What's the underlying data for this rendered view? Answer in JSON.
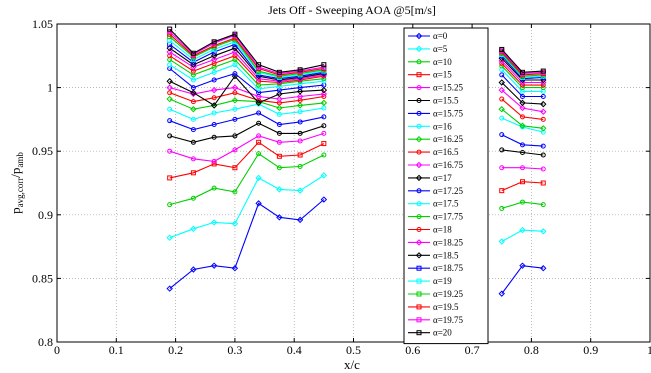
{
  "chart_data": {
    "type": "line",
    "title": "Jets Off - Sweeping AOA @5[m/s]",
    "xlabel": "x/c",
    "ylabel": {
      "base": "p",
      "sub1": "avg,corr",
      "slash": "/p",
      "sub2": "amb"
    },
    "xlim": [
      0,
      1
    ],
    "ylim": [
      0.8,
      1.05
    ],
    "xticks": [
      0,
      0.1,
      0.2,
      0.3,
      0.4,
      0.5,
      0.6,
      0.7,
      0.8,
      0.9,
      1
    ],
    "xtick_labels": [
      "0",
      "0.1",
      "0.2",
      "0.3",
      "0.4",
      "0.5",
      "0.6",
      "0.7",
      "0.8",
      "0.9",
      "1"
    ],
    "yticks": [
      0.8,
      0.85,
      0.9,
      0.95,
      1,
      1.05
    ],
    "ytick_labels": [
      "0.8",
      "0.85",
      "0.9",
      "0.95",
      "1",
      "1.05"
    ],
    "grid": true,
    "legend_placement": "inside-upper-center",
    "x_group1": [
      0.19,
      0.23,
      0.265,
      0.3,
      0.34,
      0.375,
      0.41,
      0.45
    ],
    "x_group2": [
      0.75,
      0.785,
      0.82
    ],
    "series": [
      {
        "name": "α=0",
        "color": "#0000ff",
        "marker": "diamond",
        "g1": [
          0.842,
          0.857,
          0.86,
          0.858,
          0.909,
          0.898,
          0.896,
          0.912
        ],
        "g2": [
          0.838,
          0.86,
          0.858
        ]
      },
      {
        "name": "α=5",
        "color": "#00ffff",
        "marker": "diamond",
        "g1": [
          0.882,
          0.889,
          0.894,
          0.893,
          0.929,
          0.92,
          0.919,
          0.931
        ],
        "g2": [
          0.879,
          0.888,
          0.887
        ]
      },
      {
        "name": "α=10",
        "color": "#00d000",
        "marker": "circle",
        "g1": [
          0.908,
          0.913,
          0.921,
          0.918,
          0.948,
          0.937,
          0.938,
          0.947
        ],
        "g2": [
          0.905,
          0.91,
          0.908
        ]
      },
      {
        "name": "α=15",
        "color": "#ff0000",
        "marker": "square",
        "g1": [
          0.929,
          0.933,
          0.94,
          0.937,
          0.957,
          0.946,
          0.947,
          0.956
        ],
        "g2": [
          0.919,
          0.926,
          0.925
        ]
      },
      {
        "name": "α=15.25",
        "color": "#ff00ff",
        "marker": "circle",
        "g1": [
          0.95,
          0.944,
          0.942,
          0.951,
          0.962,
          0.957,
          0.958,
          0.964
        ],
        "g2": [
          0.937,
          0.937,
          0.936
        ]
      },
      {
        "name": "α=15.5",
        "color": "#000000",
        "marker": "circle",
        "g1": [
          0.962,
          0.957,
          0.961,
          0.962,
          0.972,
          0.964,
          0.964,
          0.97
        ],
        "g2": [
          0.951,
          0.949,
          0.947
        ]
      },
      {
        "name": "α=15.75",
        "color": "#0000ff",
        "marker": "circle",
        "g1": [
          0.974,
          0.967,
          0.971,
          0.975,
          0.98,
          0.971,
          0.973,
          0.977
        ],
        "g2": [
          0.963,
          0.955,
          0.954
        ]
      },
      {
        "name": "α=16",
        "color": "#00ffff",
        "marker": "circle",
        "g1": [
          0.983,
          0.975,
          0.98,
          0.983,
          0.987,
          0.979,
          0.981,
          0.984
        ],
        "g2": [
          0.976,
          0.969,
          0.965
        ]
      },
      {
        "name": "α=16.25",
        "color": "#00d000",
        "marker": "diamond",
        "g1": [
          0.991,
          0.983,
          0.986,
          0.99,
          0.989,
          0.984,
          0.986,
          0.988
        ],
        "g2": [
          0.983,
          0.97,
          0.968
        ]
      },
      {
        "name": "α=16.5",
        "color": "#ff0000",
        "marker": "circle",
        "g1": [
          0.996,
          0.989,
          0.992,
          0.996,
          0.99,
          0.988,
          0.99,
          0.993
        ],
        "g2": [
          0.991,
          0.977,
          0.975
        ]
      },
      {
        "name": "α=16.75",
        "color": "#ff00ff",
        "marker": "diamond",
        "g1": [
          1.0,
          0.995,
          0.998,
          1.0,
          0.993,
          0.991,
          0.993,
          0.995
        ],
        "g2": [
          0.998,
          0.984,
          0.981
        ]
      },
      {
        "name": "α=17",
        "color": "#000000",
        "marker": "diamond",
        "g1": [
          1.005,
          0.996,
          0.986,
          1.009,
          0.988,
          0.995,
          0.997,
          0.998
        ],
        "g2": [
          1.004,
          0.988,
          0.987
        ]
      },
      {
        "name": "α=17.25",
        "color": "#0000ff",
        "marker": "circle",
        "g1": [
          1.015,
          1.0,
          1.006,
          1.011,
          0.996,
          0.998,
          1.0,
          1.002
        ],
        "g2": [
          1.01,
          0.993,
          0.993
        ]
      },
      {
        "name": "α=17.5",
        "color": "#00ffff",
        "marker": "circle",
        "g1": [
          1.018,
          1.006,
          1.012,
          1.018,
          0.999,
          1.001,
          1.003,
          1.005
        ],
        "g2": [
          1.014,
          0.997,
          0.997
        ]
      },
      {
        "name": "α=17.75",
        "color": "#00d000",
        "marker": "circle",
        "g1": [
          1.022,
          1.01,
          1.016,
          1.022,
          1.002,
          1.003,
          1.005,
          1.007
        ],
        "g2": [
          1.017,
          1.0,
          1.0
        ]
      },
      {
        "name": "α=18",
        "color": "#ff0000",
        "marker": "circle",
        "g1": [
          1.025,
          1.013,
          1.019,
          1.025,
          1.005,
          1.004,
          1.006,
          1.009
        ],
        "g2": [
          1.019,
          1.002,
          1.002
        ]
      },
      {
        "name": "α=18.25",
        "color": "#ff00ff",
        "marker": "diamond",
        "g1": [
          1.028,
          1.016,
          1.022,
          1.028,
          1.007,
          1.005,
          1.007,
          1.01
        ],
        "g2": [
          1.021,
          1.004,
          1.004
        ]
      },
      {
        "name": "α=18.5",
        "color": "#000000",
        "marker": "diamond",
        "g1": [
          1.031,
          1.018,
          1.025,
          1.031,
          1.009,
          1.006,
          1.008,
          1.011
        ],
        "g2": [
          1.023,
          1.006,
          1.006
        ]
      },
      {
        "name": "α=18.75",
        "color": "#0000ff",
        "marker": "square",
        "g1": [
          1.034,
          1.02,
          1.028,
          1.034,
          1.01,
          1.007,
          1.009,
          1.012
        ],
        "g2": [
          1.025,
          1.007,
          1.008
        ]
      },
      {
        "name": "α=19",
        "color": "#00ffff",
        "marker": "square",
        "g1": [
          1.037,
          1.022,
          1.03,
          1.036,
          1.012,
          1.008,
          1.01,
          1.013
        ],
        "g2": [
          1.026,
          1.008,
          1.009
        ]
      },
      {
        "name": "α=19.25",
        "color": "#00d000",
        "marker": "square",
        "g1": [
          1.04,
          1.024,
          1.032,
          1.038,
          1.013,
          1.009,
          1.011,
          1.014
        ],
        "g2": [
          1.027,
          1.009,
          1.01
        ]
      },
      {
        "name": "α=19.5",
        "color": "#ff0000",
        "marker": "square",
        "g1": [
          1.042,
          1.025,
          1.033,
          1.039,
          1.015,
          1.01,
          1.012,
          1.015
        ],
        "g2": [
          1.028,
          1.01,
          1.011
        ]
      },
      {
        "name": "α=19.75",
        "color": "#ff00ff",
        "marker": "square",
        "g1": [
          1.044,
          1.026,
          1.035,
          1.041,
          1.016,
          1.011,
          1.013,
          1.016
        ],
        "g2": [
          1.029,
          1.011,
          1.012
        ]
      },
      {
        "name": "α=20",
        "color": "#000000",
        "marker": "square",
        "g1": [
          1.046,
          1.027,
          1.036,
          1.042,
          1.018,
          1.012,
          1.014,
          1.018
        ],
        "g2": [
          1.03,
          1.012,
          1.013
        ]
      }
    ]
  }
}
